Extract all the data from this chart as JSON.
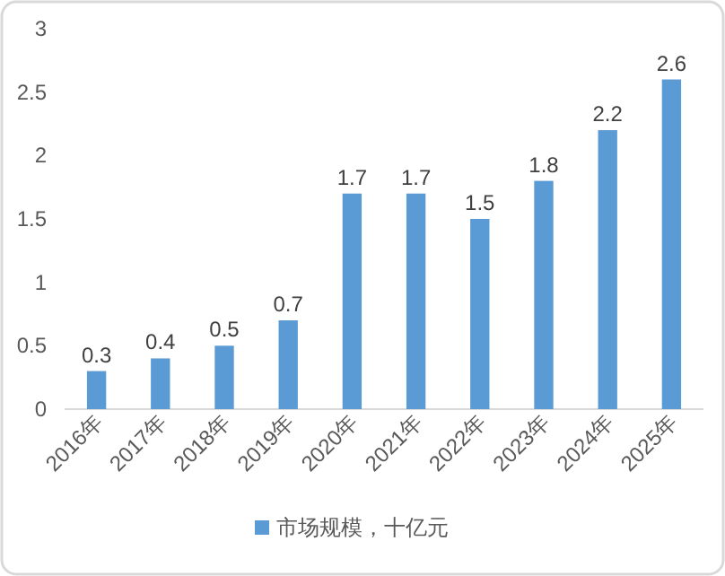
{
  "chart_data": {
    "type": "bar",
    "categories": [
      "2016年",
      "2017年",
      "2018年",
      "2019年",
      "2020年",
      "2021年",
      "2022年",
      "2023年",
      "2024年",
      "2025年"
    ],
    "series": [
      {
        "name": "市场规模，十亿元",
        "color": "#5b9bd5",
        "values": [
          0.3,
          0.4,
          0.5,
          0.7,
          1.7,
          1.7,
          1.5,
          1.8,
          2.2,
          2.6
        ]
      }
    ],
    "ylim": [
      0,
      3
    ],
    "yticks": [
      0,
      0.5,
      1,
      1.5,
      2,
      2.5,
      3
    ],
    "data_labels": true,
    "legend": "bottom"
  }
}
